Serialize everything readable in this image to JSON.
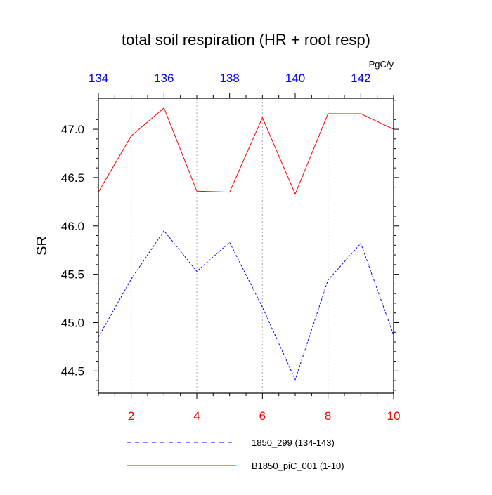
{
  "chart_data": {
    "type": "line",
    "title": "total soil respiration (HR + root resp)",
    "ylabel": "SR",
    "units_label": "PgC/y",
    "ylim": [
      44.27,
      47.32
    ],
    "yticks_major": [
      44.5,
      45.0,
      45.5,
      46.0,
      46.5,
      47.0
    ],
    "ytick_labels": [
      "44.5",
      "45.0",
      "45.5",
      "46.0",
      "46.5",
      "47.0"
    ],
    "x_bottom": {
      "range": [
        1,
        10
      ],
      "ticks": [
        2,
        4,
        6,
        8,
        10
      ],
      "tick_labels": [
        "2",
        "4",
        "6",
        "8",
        "10"
      ],
      "color": "#ff0000"
    },
    "x_top": {
      "range": [
        134,
        143
      ],
      "ticks": [
        134,
        136,
        138,
        140,
        142
      ],
      "tick_labels": [
        "134",
        "136",
        "138",
        "140",
        "142"
      ],
      "color": "#0000ff"
    },
    "grid": "vertical-dotted",
    "legend_position": "bottom",
    "series": [
      {
        "name": "1850_299 (134-143)",
        "axis": "top",
        "color": "#0000ff",
        "dash": "dashed",
        "x": [
          134,
          135,
          136,
          137,
          138,
          139,
          140,
          141,
          142,
          143
        ],
        "values": [
          44.85,
          45.45,
          45.95,
          45.53,
          45.83,
          45.16,
          44.41,
          45.44,
          45.82,
          44.87
        ]
      },
      {
        "name": "B1850_piC_001 (1-10)",
        "axis": "bottom",
        "color": "#ff0000",
        "dash": "solid",
        "x": [
          1,
          2,
          3,
          4,
          5,
          6,
          7,
          8,
          9,
          10
        ],
        "values": [
          46.35,
          46.93,
          47.22,
          46.36,
          46.35,
          47.12,
          46.33,
          47.16,
          47.16,
          47.0
        ]
      }
    ]
  }
}
